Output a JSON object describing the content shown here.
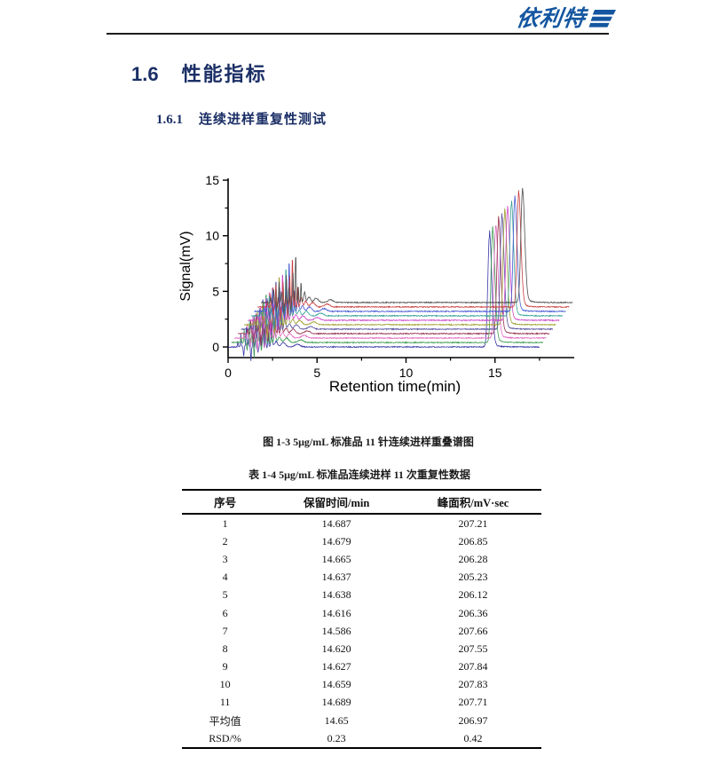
{
  "page": {
    "logo_text": "依利特",
    "heading_number": "1.6",
    "heading_text": "性能指标",
    "subheading_number": "1.6.1",
    "subheading_text": "连续进样重复性测试",
    "figure_caption": "图 1-3  5μg/mL 标准品 11 针连续进样重叠谱图",
    "table_caption": "表 1-4  5μg/mL 标准品连续进样 11 次重复性数据"
  },
  "colors": {
    "logo_blue": "#1456a0",
    "heading_navy": "#1b2f66",
    "rule_black": "#1c1c1c"
  },
  "table": {
    "headers": [
      "序号",
      "保留时间/min",
      "峰面积/mV·sec"
    ],
    "rows": [
      [
        "1",
        "14.687",
        "207.21"
      ],
      [
        "2",
        "14.679",
        "206.85"
      ],
      [
        "3",
        "14.665",
        "206.28"
      ],
      [
        "4",
        "14.637",
        "205.23"
      ],
      [
        "5",
        "14.638",
        "206.12"
      ],
      [
        "6",
        "14.616",
        "206.36"
      ],
      [
        "7",
        "14.586",
        "207.66"
      ],
      [
        "8",
        "14.620",
        "207.55"
      ],
      [
        "9",
        "14.627",
        "207.84"
      ],
      [
        "10",
        "14.659",
        "207.83"
      ],
      [
        "11",
        "14.689",
        "207.71"
      ],
      [
        "平均值",
        "14.65",
        "206.97"
      ],
      [
        "RSD/%",
        "0.23",
        "0.42"
      ]
    ]
  },
  "chart_data": {
    "type": "line",
    "title": "",
    "xlabel": "Retention time(min)",
    "ylabel": "Signal(mV)",
    "xlim": [
      0,
      19.5
    ],
    "ylim": [
      -1,
      15.3
    ],
    "x_ticks": [
      0,
      5,
      10,
      15
    ],
    "x_minor_ticks": [
      2.5,
      7.5,
      12.5,
      17.5
    ],
    "y_ticks": [
      0,
      5,
      10,
      15
    ],
    "y_minor_ticks": [
      2.5,
      7.5,
      12.5
    ],
    "grid": false,
    "legend": "none",
    "n_traces": 11,
    "trace_x_offset_min": 0.185,
    "trace_y_offset_mv": 0.4,
    "trace_end_min": 17.5,
    "noise_mv": 0.045,
    "main_peak": {
      "height_mv": 10.0,
      "sigma_left_min": 0.09,
      "sigma_right_min": 0.13,
      "tail_frac": 0.05,
      "tail_min": 0.3
    },
    "retention_times_min": [
      14.687,
      14.679,
      14.665,
      14.637,
      14.638,
      14.616,
      14.586,
      14.62,
      14.627,
      14.659,
      14.689
    ],
    "solvent_peaks": [
      [
        0.55,
        0.5,
        0.02
      ],
      [
        0.72,
        1.2,
        0.02
      ],
      [
        0.88,
        -0.8,
        0.02
      ],
      [
        1.02,
        1.9,
        0.022
      ],
      [
        1.15,
        0.9,
        0.02
      ],
      [
        1.28,
        -1.2,
        0.02
      ],
      [
        1.42,
        2.3,
        0.022
      ],
      [
        1.56,
        1.2,
        0.02
      ],
      [
        1.68,
        -0.7,
        0.02
      ],
      [
        1.8,
        2.8,
        0.022
      ],
      [
        1.95,
        4.5,
        0.025
      ],
      [
        2.1,
        1.5,
        0.02
      ],
      [
        2.25,
        2.0,
        0.02
      ],
      [
        2.45,
        0.9,
        0.05
      ],
      [
        2.7,
        0.5,
        0.08
      ],
      [
        3.1,
        0.4,
        0.12
      ],
      [
        3.9,
        0.25,
        0.15
      ]
    ],
    "colors_bottom_to_top": [
      "#3a3aa6",
      "#3d9c52",
      "#e06cc0",
      "#963250",
      "#55509e",
      "#a0a032",
      "#cc46c8",
      "#36a096",
      "#4458d0",
      "#c83e3e",
      "#4d4d4d"
    ]
  }
}
